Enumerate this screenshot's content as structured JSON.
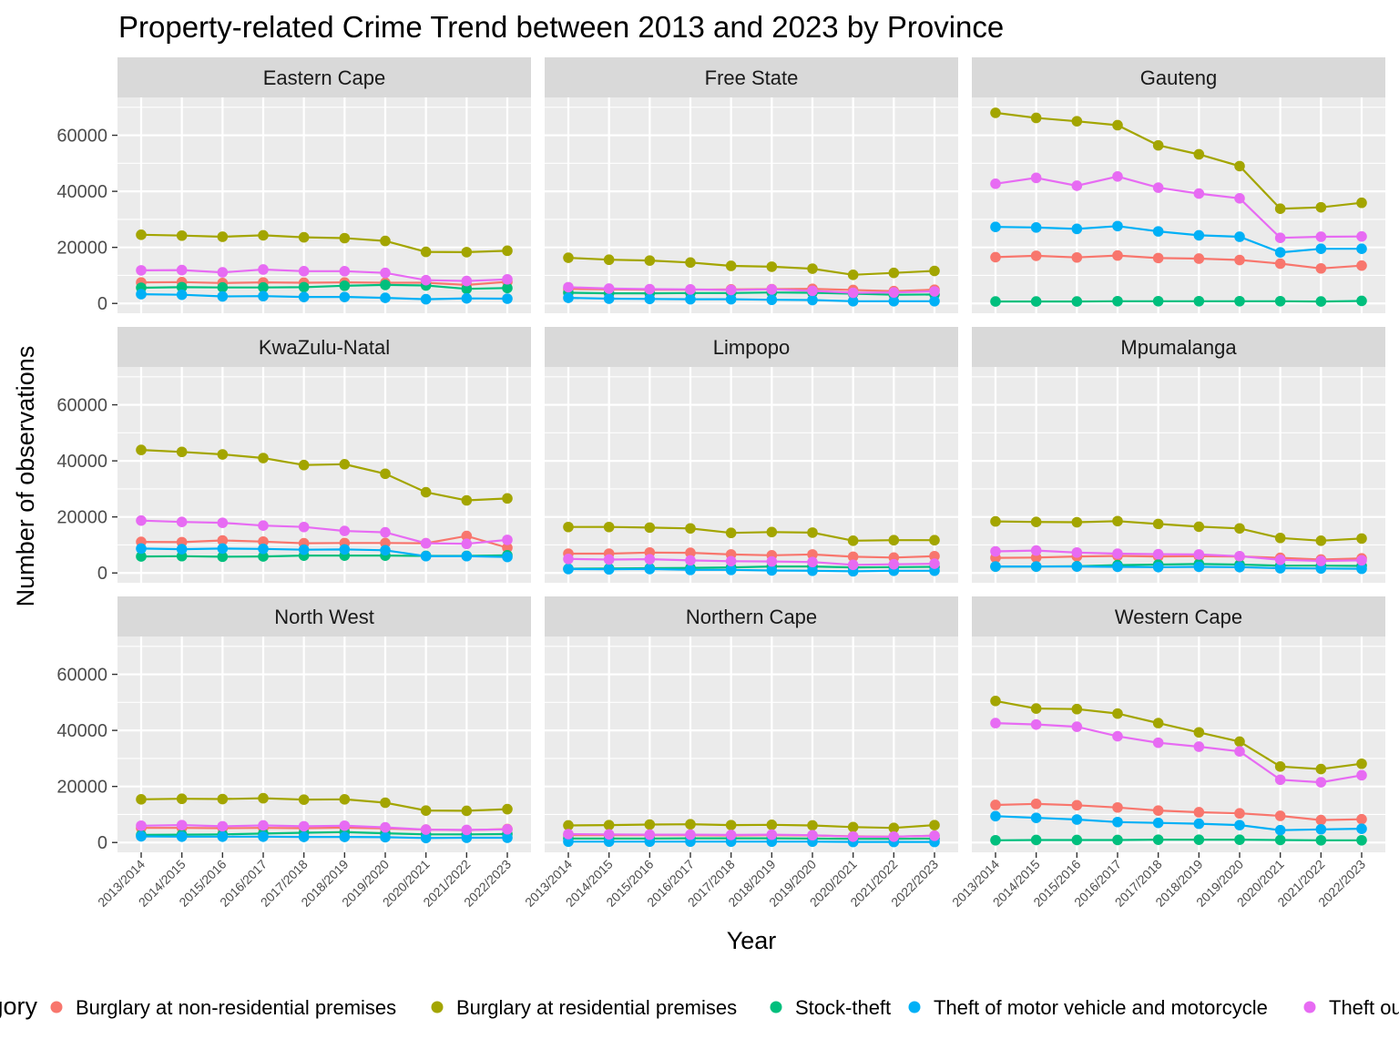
{
  "chart_data": {
    "type": "line",
    "title": "Property-related Crime Trend between 2013 and 2023 by Province",
    "xlabel": "Year",
    "ylabel": "Number of observations",
    "ylim": [
      -3500,
      73500
    ],
    "yticks": [
      0,
      20000,
      40000,
      60000
    ],
    "ytick_labels": [
      "0",
      "20000",
      "40000",
      "60000"
    ],
    "grid": true,
    "legend_position": "bottom",
    "legend_title": "Category",
    "categories": [
      "2013/2014",
      "2014/2015",
      "2015/2016",
      "2016/2017",
      "2017/2018",
      "2018/2019",
      "2019/2020",
      "2020/2021",
      "2021/2022",
      "2022/2023"
    ],
    "series_colors": {
      "Burglary at non-residential premises": "#F8766D",
      "Burglary at residential premises": "#A3A500",
      "Stock-theft": "#00BF7D",
      "Theft of motor vehicle and motorcycle": "#00B0F6",
      "Theft out of or from motor vehicle": "#E76BF3"
    },
    "legend_entries": [
      "Burglary at non-residential premises",
      "Burglary at residential premises",
      "Stock-theft",
      "Theft of motor vehicle and motorcycle",
      "Theft out of or from motor vehicle"
    ],
    "panels": [
      {
        "province": "Eastern Cape",
        "series": [
          {
            "name": "Burglary at non-residential premises",
            "values": [
              7500,
              7600,
              7300,
              7500,
              7400,
              7500,
              7400,
              7400,
              6600,
              7700
            ]
          },
          {
            "name": "Burglary at residential premises",
            "values": [
              24500,
              24200,
              23800,
              24300,
              23600,
              23300,
              22300,
              18400,
              18300,
              18800
            ]
          },
          {
            "name": "Stock-theft",
            "values": [
              5600,
              5800,
              5700,
              5700,
              5800,
              6300,
              6600,
              6400,
              5200,
              5500
            ]
          },
          {
            "name": "Theft of motor vehicle and motorcycle",
            "values": [
              3300,
              3100,
              2500,
              2600,
              2300,
              2300,
              2000,
              1500,
              1800,
              1700
            ]
          },
          {
            "name": "Theft out of or from motor vehicle",
            "values": [
              11800,
              11900,
              11100,
              12100,
              11500,
              11500,
              10900,
              8300,
              8000,
              8600
            ]
          }
        ]
      },
      {
        "province": "Free State",
        "series": [
          {
            "name": "Burglary at non-residential premises",
            "values": [
              5200,
              5000,
              4900,
              4900,
              5000,
              5100,
              5200,
              4800,
              4400,
              4900
            ]
          },
          {
            "name": "Burglary at residential premises",
            "values": [
              16300,
              15600,
              15300,
              14600,
              13400,
              13100,
              12400,
              10200,
              10900,
              11600
            ]
          },
          {
            "name": "Stock-theft",
            "values": [
              3800,
              3600,
              3600,
              3700,
              3700,
              3900,
              3800,
              3500,
              3100,
              3200
            ]
          },
          {
            "name": "Theft of motor vehicle and motorcycle",
            "values": [
              2000,
              1700,
              1600,
              1500,
              1500,
              1300,
              1200,
              800,
              800,
              800
            ]
          },
          {
            "name": "Theft out of or from motor vehicle",
            "values": [
              5800,
              5300,
              5100,
              5000,
              4800,
              5000,
              4500,
              3800,
              3900,
              4300
            ]
          }
        ]
      },
      {
        "province": "Gauteng",
        "series": [
          {
            "name": "Burglary at non-residential premises",
            "values": [
              16500,
              17000,
              16400,
              17100,
              16200,
              16000,
              15500,
              14200,
              12500,
              13500
            ]
          },
          {
            "name": "Burglary at residential premises",
            "values": [
              68000,
              66200,
              65000,
              63600,
              56400,
              53200,
              49000,
              33800,
              34300,
              35900
            ]
          },
          {
            "name": "Stock-theft",
            "values": [
              700,
              700,
              700,
              800,
              800,
              800,
              800,
              800,
              700,
              900
            ]
          },
          {
            "name": "Theft of motor vehicle and motorcycle",
            "values": [
              27300,
              27100,
              26600,
              27600,
              25700,
              24300,
              23800,
              18200,
              19500,
              19500
            ]
          },
          {
            "name": "Theft out of or from motor vehicle",
            "values": [
              42700,
              44800,
              42000,
              45300,
              41300,
              39200,
              37500,
              23400,
              23800,
              23900
            ]
          }
        ]
      },
      {
        "province": "KwaZulu-Natal",
        "series": [
          {
            "name": "Burglary at non-residential premises",
            "values": [
              11100,
              11000,
              11600,
              11200,
              10600,
              10700,
              10700,
              10600,
              13200,
              9000
            ]
          },
          {
            "name": "Burglary at residential premises",
            "values": [
              43900,
              43200,
              42300,
              41000,
              38500,
              38800,
              35400,
              28800,
              25900,
              26600
            ]
          },
          {
            "name": "Stock-theft",
            "values": [
              5900,
              6000,
              5800,
              5900,
              6200,
              6200,
              6200,
              6100,
              6100,
              6300
            ]
          },
          {
            "name": "Theft of motor vehicle and motorcycle",
            "values": [
              8700,
              8500,
              8700,
              8600,
              8300,
              8400,
              8100,
              6000,
              6000,
              5700
            ]
          },
          {
            "name": "Theft out of or from motor vehicle",
            "values": [
              18700,
              18200,
              17900,
              16900,
              16400,
              15000,
              14500,
              10600,
              10400,
              11800
            ]
          }
        ]
      },
      {
        "province": "Limpopo",
        "series": [
          {
            "name": "Burglary at non-residential premises",
            "values": [
              6900,
              6900,
              7300,
              7200,
              6600,
              6300,
              6600,
              5800,
              5500,
              6000
            ]
          },
          {
            "name": "Burglary at residential premises",
            "values": [
              16400,
              16400,
              16200,
              15900,
              14300,
              14600,
              14400,
              11500,
              11700,
              11700
            ]
          },
          {
            "name": "Stock-theft",
            "values": [
              1500,
              1600,
              1700,
              1800,
              2000,
              2300,
              2300,
              2000,
              2100,
              2200
            ]
          },
          {
            "name": "Theft of motor vehicle and motorcycle",
            "values": [
              1400,
              1300,
              1400,
              1100,
              1100,
              900,
              800,
              600,
              800,
              800
            ]
          },
          {
            "name": "Theft out of or from motor vehicle",
            "values": [
              5000,
              4800,
              4900,
              4500,
              4200,
              4100,
              3900,
              2900,
              3100,
              3300
            ]
          }
        ]
      },
      {
        "province": "Mpumalanga",
        "series": [
          {
            "name": "Burglary at non-residential premises",
            "values": [
              5400,
              5500,
              5900,
              6100,
              5900,
              6000,
              5900,
              5400,
              4800,
              5200
            ]
          },
          {
            "name": "Burglary at residential premises",
            "values": [
              18400,
              18200,
              18100,
              18500,
              17500,
              16500,
              15900,
              12500,
              11500,
              12300
            ]
          },
          {
            "name": "Stock-theft",
            "values": [
              2300,
              2300,
              2400,
              2800,
              3000,
              3200,
              3000,
              2600,
              2600,
              2500
            ]
          },
          {
            "name": "Theft of motor vehicle and motorcycle",
            "values": [
              2300,
              2300,
              2300,
              2200,
              2100,
              2200,
              2100,
              1700,
              1600,
              1500
            ]
          },
          {
            "name": "Theft out of or from motor vehicle",
            "values": [
              7700,
              8000,
              7300,
              6900,
              6700,
              6600,
              6000,
              4700,
              4300,
              4500
            ]
          }
        ]
      },
      {
        "province": "North West",
        "series": [
          {
            "name": "Burglary at non-residential premises",
            "values": [
              5200,
              5200,
              5100,
              5200,
              5100,
              5300,
              5000,
              4600,
              4400,
              4800
            ]
          },
          {
            "name": "Burglary at residential premises",
            "values": [
              15400,
              15600,
              15500,
              15800,
              15300,
              15400,
              14200,
              11400,
              11300,
              11900
            ]
          },
          {
            "name": "Stock-theft",
            "values": [
              2700,
              2800,
              2900,
              3200,
              3500,
              3700,
              3300,
              2900,
              2900,
              3000
            ]
          },
          {
            "name": "Theft of motor vehicle and motorcycle",
            "values": [
              2200,
              2100,
              2100,
              2100,
              2000,
              2000,
              1900,
              1600,
              1700,
              1700
            ]
          },
          {
            "name": "Theft out of or from motor vehicle",
            "values": [
              6000,
              6200,
              5800,
              6100,
              5800,
              6000,
              5400,
              4600,
              4500,
              4700
            ]
          }
        ]
      },
      {
        "province": "Northern Cape",
        "series": [
          {
            "name": "Burglary at non-residential premises",
            "values": [
              2600,
              2600,
              2600,
              2600,
              2500,
              2600,
              2500,
              2200,
              2100,
              2400
            ]
          },
          {
            "name": "Burglary at residential premises",
            "values": [
              6100,
              6200,
              6400,
              6500,
              6200,
              6300,
              6100,
              5500,
              5200,
              6200
            ]
          },
          {
            "name": "Stock-theft",
            "values": [
              1400,
              1400,
              1400,
              1500,
              1500,
              1500,
              1400,
              1300,
              1300,
              1400
            ]
          },
          {
            "name": "Theft of motor vehicle and motorcycle",
            "values": [
              300,
              300,
              300,
              300,
              300,
              300,
              300,
              200,
              200,
              200
            ]
          },
          {
            "name": "Theft out of or from motor vehicle",
            "values": [
              3000,
              2900,
              2800,
              2800,
              2700,
              2800,
              2600,
              2100,
              2100,
              2400
            ]
          }
        ]
      },
      {
        "province": "Western Cape",
        "series": [
          {
            "name": "Burglary at non-residential premises",
            "values": [
              13400,
              13800,
              13300,
              12500,
              11400,
              10800,
              10400,
              9500,
              8000,
              8300
            ]
          },
          {
            "name": "Burglary at residential premises",
            "values": [
              50500,
              47800,
              47600,
              46000,
              42600,
              39300,
              36000,
              27100,
              26200,
              28100
            ]
          },
          {
            "name": "Stock-theft",
            "values": [
              800,
              900,
              900,
              900,
              1000,
              1000,
              1000,
              900,
              800,
              800
            ]
          },
          {
            "name": "Theft of motor vehicle and motorcycle",
            "values": [
              9400,
              8800,
              8200,
              7300,
              7000,
              6700,
              6200,
              4400,
              4700,
              4900
            ]
          },
          {
            "name": "Theft out of or from motor vehicle",
            "values": [
              42600,
              42100,
              41300,
              37900,
              35600,
              34200,
              32500,
              22400,
              21500,
              24000
            ]
          }
        ]
      }
    ]
  }
}
